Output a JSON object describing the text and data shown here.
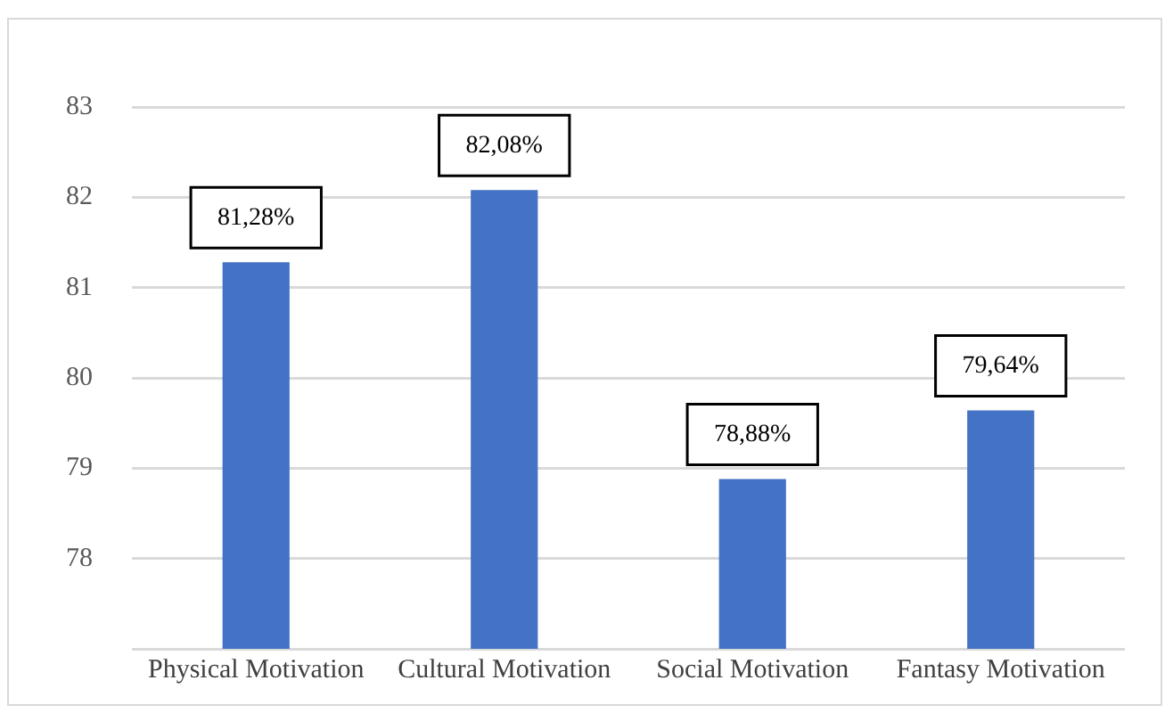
{
  "chart_data": {
    "type": "bar",
    "categories": [
      "Physical Motivation",
      "Cultural Motivation",
      "Social Motivation",
      "Fantasy Motivation"
    ],
    "values": [
      81.28,
      82.08,
      78.88,
      79.64
    ],
    "color": "#4472c4",
    "value_labels": [
      "81,28%",
      "82,08%",
      "78,88%",
      "79,64%"
    ],
    "ylim": [
      77,
      83
    ],
    "yticks": [
      {
        "value": 77,
        "label": null
      },
      78,
      79,
      80,
      81,
      82,
      83
    ],
    "grid": "y"
  }
}
